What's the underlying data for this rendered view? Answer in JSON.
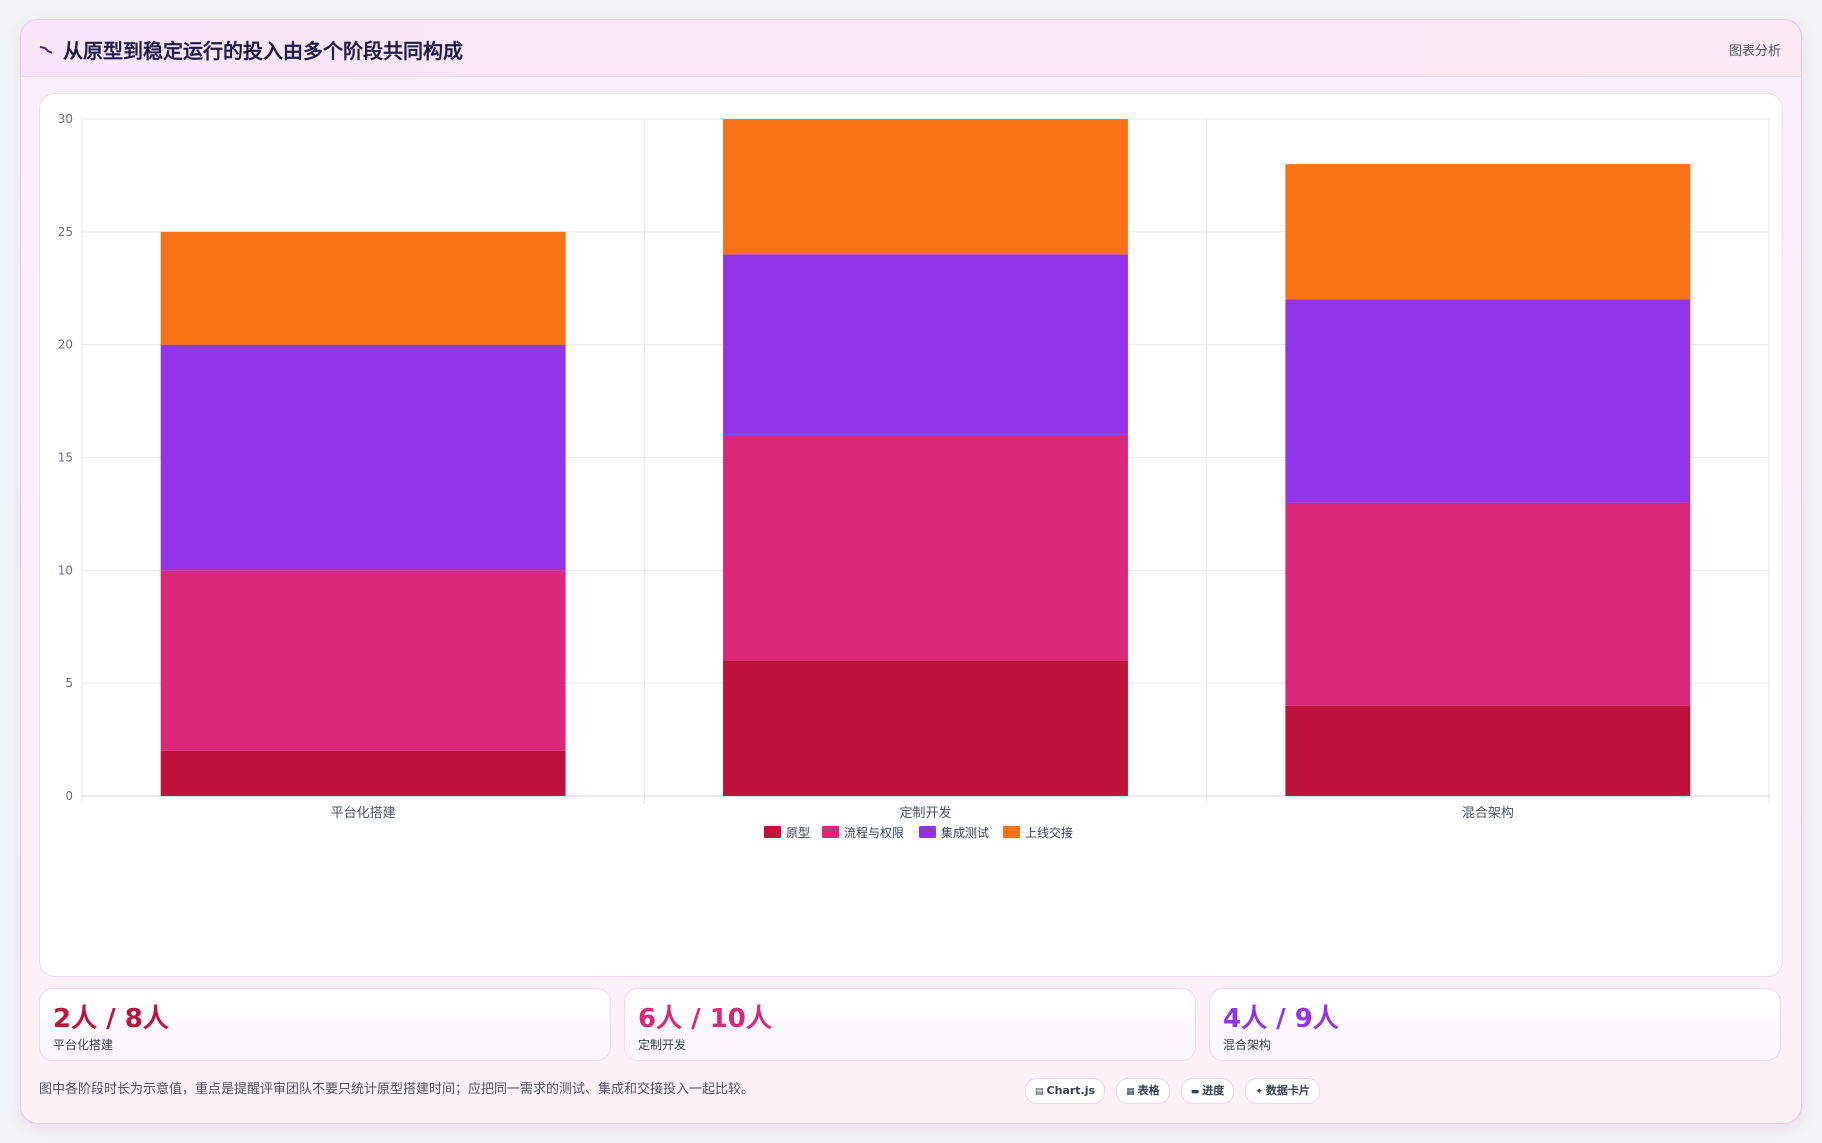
{
  "header": {
    "title": "从原型到稳定运行的投入由多个阶段共同构成",
    "action_label": "图表分析"
  },
  "colors": {
    "prototype": "#be123c",
    "process": "#db2777",
    "integration": "#9333ea",
    "launch": "#f97316"
  },
  "chart_data": {
    "type": "bar",
    "stacked": true,
    "categories": [
      "平台化搭建",
      "定制开发",
      "混合架构"
    ],
    "series": [
      {
        "name": "原型",
        "color": "#be123c",
        "values": [
          2,
          6,
          4
        ]
      },
      {
        "name": "流程与权限",
        "color": "#db2777",
        "values": [
          8,
          10,
          9
        ]
      },
      {
        "name": "集成测试",
        "color": "#9333ea",
        "values": [
          10,
          8,
          9
        ]
      },
      {
        "name": "上线交接",
        "color": "#f97316",
        "values": [
          5,
          6,
          6
        ]
      }
    ],
    "ylim": [
      0,
      30
    ],
    "yticks": [
      0,
      5,
      10,
      15,
      20,
      25,
      30
    ],
    "grid": true,
    "legend_position": "bottom"
  },
  "stats": [
    {
      "value": "2人 / 8人",
      "label": "平台化搭建",
      "color": "#be123c"
    },
    {
      "value": "6人 / 10人",
      "label": "定制开发",
      "color": "#db2777"
    },
    {
      "value": "4人 / 9人",
      "label": "混合架构",
      "color": "#9333ea"
    }
  ],
  "footer": {
    "note": "图中各阶段时长为示意值，重点是提醒评审团队不要只统计原型搭建时间；应把同一需求的测试、集成和交接投入一起比较。",
    "pills": [
      {
        "icon": "▤",
        "label": "Chart.js"
      },
      {
        "icon": "▦",
        "label": "表格"
      },
      {
        "icon": "▬",
        "label": "进度"
      },
      {
        "icon": "✦",
        "label": "数据卡片"
      }
    ]
  }
}
